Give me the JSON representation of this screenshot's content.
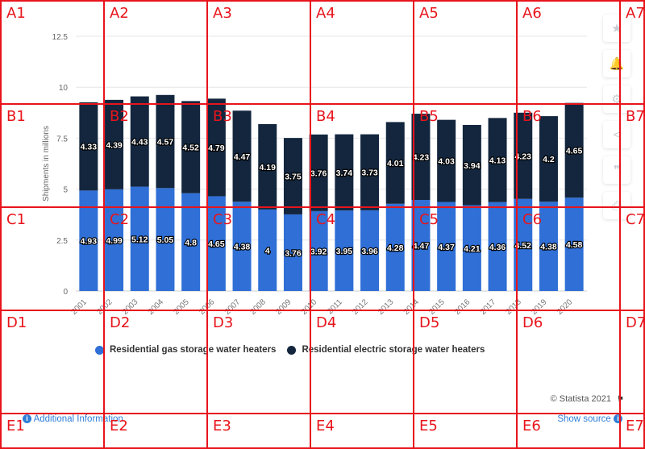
{
  "chart_data": {
    "type": "bar",
    "stacked": true,
    "ylabel": "Shipments in millions",
    "ylim": [
      0,
      12.5
    ],
    "yticks": [
      0,
      2.5,
      5,
      7.5,
      10,
      12.5
    ],
    "ytick_labels": [
      "0",
      "2.5",
      "5",
      "7.5",
      "10",
      "12.5"
    ],
    "grid": true,
    "categories": [
      "2001",
      "2002",
      "2003",
      "2004",
      "2005",
      "2006",
      "2007",
      "2008",
      "2009",
      "2010",
      "2011",
      "2012",
      "2013",
      "2014",
      "2015",
      "2016",
      "2017",
      "2018",
      "2019",
      "2020"
    ],
    "series": [
      {
        "name": "Residential gas storage water heaters",
        "color": "#2f6fd6",
        "values": [
          4.93,
          4.99,
          5.12,
          5.05,
          4.8,
          4.65,
          4.38,
          4,
          3.76,
          3.92,
          3.95,
          3.96,
          4.28,
          4.47,
          4.37,
          4.21,
          4.36,
          4.52,
          4.38,
          4.58
        ]
      },
      {
        "name": "Residential electric storage water heaters",
        "color": "#13263e",
        "values": [
          4.33,
          4.39,
          4.43,
          4.57,
          4.52,
          4.79,
          4.47,
          4.19,
          3.75,
          3.76,
          3.74,
          3.73,
          4.01,
          4.23,
          4.03,
          3.94,
          4.13,
          4.23,
          4.2,
          4.65
        ]
      }
    ],
    "legend": "bottom-center"
  },
  "sidebar": {
    "icons": [
      "star-icon",
      "bell-icon",
      "gear-icon",
      "share-icon",
      "quote-icon",
      "print-icon"
    ],
    "glyphs": [
      "★",
      "🔔",
      "⚙",
      "<",
      "❞",
      "⎙"
    ]
  },
  "footer": {
    "credit": "© Statista 2021",
    "additional_info": "Additional Information",
    "show_source": "Show source"
  },
  "grid_overlay": {
    "color": "#e8141b",
    "rows": [
      "A",
      "B",
      "C",
      "D",
      "E"
    ],
    "cols": [
      "1",
      "2",
      "3",
      "4",
      "5",
      "6",
      "7"
    ]
  }
}
